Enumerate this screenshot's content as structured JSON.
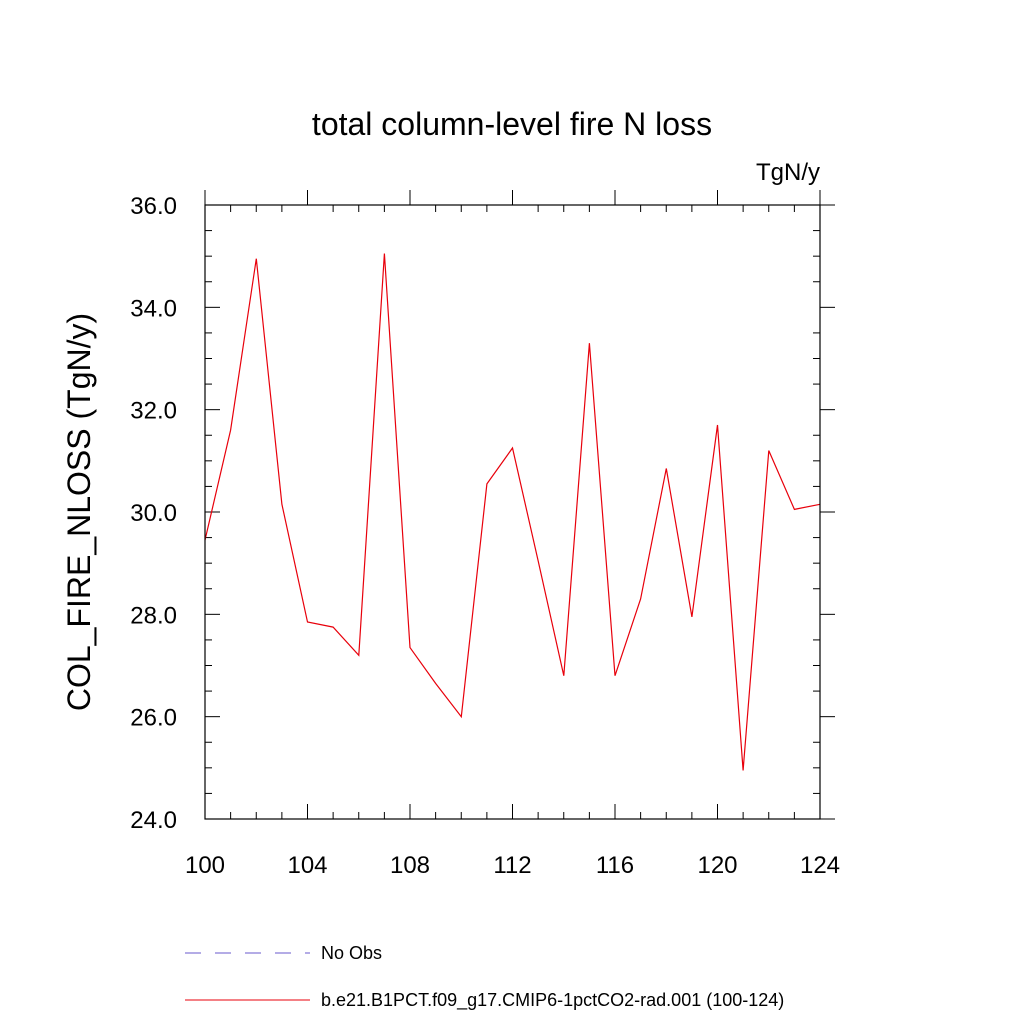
{
  "chart_data": {
    "type": "line",
    "title": "total column-level fire N loss",
    "units": "TgN/y",
    "ylabel": "COL_FIRE_NLOSS  (TgN/y)",
    "xlabel": "",
    "xlim": [
      100,
      124
    ],
    "ylim": [
      24.0,
      36.0
    ],
    "xticks": [
      100,
      104,
      108,
      112,
      116,
      120,
      124
    ],
    "yticks": [
      "24.0",
      "26.0",
      "28.0",
      "30.0",
      "32.0",
      "34.0",
      "36.0"
    ],
    "grid": false,
    "legend_position": "bottom",
    "series": [
      {
        "name": "b.e21.B1PCT.f09_g17.CMIP6-1pctCO2-rad.001 (100-124)",
        "color": "#e8000b",
        "style": "solid",
        "x": [
          100,
          101,
          102,
          103,
          104,
          105,
          106,
          107,
          108,
          109,
          110,
          111,
          112,
          113,
          114,
          115,
          116,
          117,
          118,
          119,
          120,
          121,
          122,
          123,
          124
        ],
        "y": [
          29.45,
          31.6,
          34.95,
          30.15,
          27.85,
          27.75,
          27.2,
          35.05,
          27.35,
          26.65,
          26.0,
          30.55,
          31.25,
          29.05,
          26.8,
          33.3,
          26.8,
          28.3,
          30.85,
          27.95,
          31.7,
          24.95,
          31.2,
          30.05,
          30.15
        ]
      }
    ],
    "legend": [
      {
        "label": "No Obs",
        "color": "#6a5acd",
        "style": "dashed"
      },
      {
        "label": "b.e21.B1PCT.f09_g17.CMIP6-1pctCO2-rad.001 (100-124)",
        "color": "#e8000b",
        "style": "solid"
      }
    ]
  }
}
